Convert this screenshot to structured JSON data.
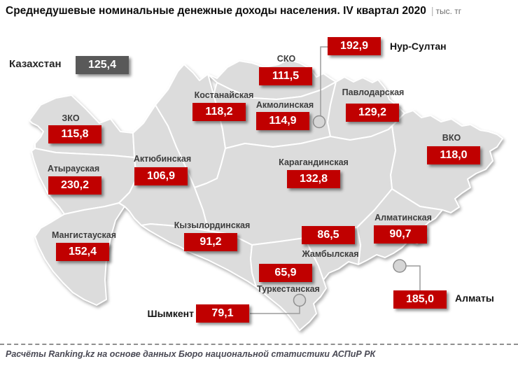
{
  "title": {
    "main": "Среднедушевые номинальные денежные доходы населения. IV квартал 2020",
    "separator": "|",
    "unit": "тыс. тг"
  },
  "country": {
    "label": "Казахстан",
    "value": "125,4"
  },
  "regions": [
    {
      "id": "sko",
      "name": "СКО",
      "value": "111,5"
    },
    {
      "id": "pavlodar",
      "name": "Павлодарская",
      "value": "129,2"
    },
    {
      "id": "kostanay",
      "name": "Костанайская",
      "value": "118,2"
    },
    {
      "id": "akmola",
      "name": "Акмолинская",
      "value": "114,9"
    },
    {
      "id": "zko",
      "name": "ЗКО",
      "value": "115,8"
    },
    {
      "id": "vko",
      "name": "ВКО",
      "value": "118,0"
    },
    {
      "id": "atyrau",
      "name": "Атырауская",
      "value": "230,2"
    },
    {
      "id": "aktobe",
      "name": "Актюбинская",
      "value": "106,9"
    },
    {
      "id": "karaganda",
      "name": "Карагандинская",
      "value": "132,8"
    },
    {
      "id": "kyzylorda",
      "name": "Кызылординская",
      "value": "91,2"
    },
    {
      "id": "almaty_obl",
      "name": "Алматинская",
      "value": "90,7"
    },
    {
      "id": "zhambyl",
      "name": "Жамбылская",
      "value": "86,5"
    },
    {
      "id": "mangystau",
      "name": "Мангистауская",
      "value": "152,4"
    },
    {
      "id": "turkestan",
      "name": "Туркестанская",
      "value": "65,9"
    }
  ],
  "cities": [
    {
      "id": "nursultan",
      "name": "Нур-Султан",
      "value": "192,9"
    },
    {
      "id": "almaty",
      "name": "Алматы",
      "value": "185,0"
    },
    {
      "id": "shymkent",
      "name": "Шымкент",
      "value": "79,1"
    }
  ],
  "colors": {
    "value_badge": "#c00000",
    "country_badge": "#595959",
    "region_fill": "#dcdcdc",
    "region_border": "#ffffff"
  },
  "footer": {
    "source": "Расчёты Ranking.kz на основе данных Бюро национальной статистики АСПиР РК"
  },
  "chart_data": {
    "type": "map",
    "title": "Среднедушевые номинальные денежные доходы населения. IV квартал 2020",
    "unit": "тыс. тг",
    "country": {
      "name": "Казахстан",
      "value": 125.4
    },
    "categories": [
      "СКО",
      "Нур-Султан",
      "Павлодарская",
      "Костанайская",
      "Акмолинская",
      "ЗКО",
      "ВКО",
      "Атырауская",
      "Актюбинская",
      "Карагандинская",
      "Кызылординская",
      "Алматинская",
      "Жамбылская",
      "Мангистауская",
      "Туркестанская",
      "Шымкент",
      "Алматы"
    ],
    "values": [
      111.5,
      192.9,
      129.2,
      118.2,
      114.9,
      115.8,
      118.0,
      230.2,
      106.9,
      132.8,
      91.2,
      90.7,
      86.5,
      152.4,
      65.9,
      79.1,
      185.0
    ],
    "source": "Расчёты Ranking.kz на основе данных Бюро национальной статистики АСПиР РК"
  }
}
